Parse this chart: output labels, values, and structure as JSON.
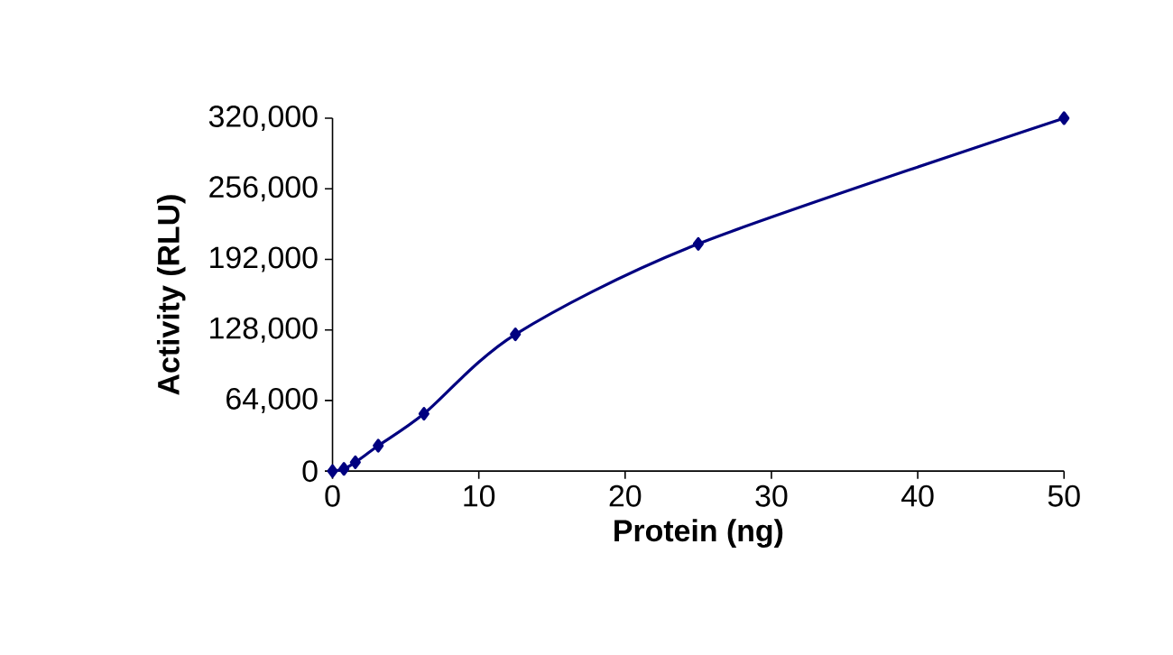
{
  "chart_data": {
    "type": "line",
    "xlabel": "Protein (ng)",
    "ylabel": "Activity (RLU)",
    "x": [
      0,
      0.78,
      1.56,
      3.125,
      6.25,
      12.5,
      25,
      50
    ],
    "series": [
      {
        "color": "#000080",
        "values": [
          0,
          2000,
          8000,
          23000,
          52000,
          124000,
          206000,
          320000
        ]
      }
    ],
    "xlim": [
      0,
      50
    ],
    "xticks": [
      0,
      10,
      20,
      30,
      40,
      50
    ],
    "ylim": [
      0,
      320000
    ],
    "yticks": [
      {
        "value": 0,
        "label": "0"
      },
      {
        "value": 64000,
        "label": "64,000"
      },
      {
        "value": 128000,
        "label": "128,000"
      },
      {
        "value": 192000,
        "label": "192,000"
      },
      {
        "value": 256000,
        "label": "256,000"
      },
      {
        "value": 320000,
        "label": "320,000"
      }
    ],
    "marker": "diamond",
    "line_style": "solid",
    "grid": false
  }
}
